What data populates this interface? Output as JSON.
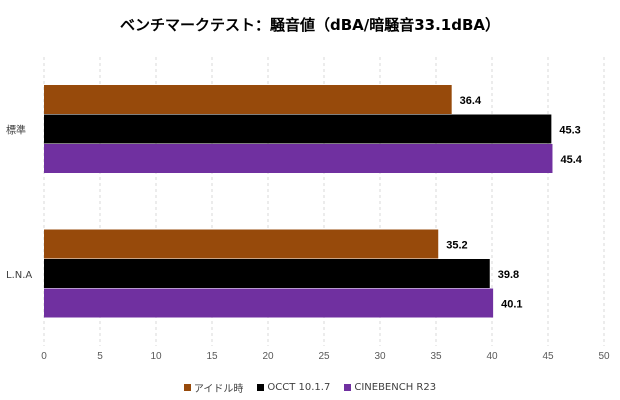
{
  "chart_data": {
    "type": "bar",
    "orientation": "horizontal",
    "title": "ベンチマークテスト：騒音値（dBA/暗騒音33.1dBA）",
    "categories": [
      "標準",
      "L.N.A"
    ],
    "series": [
      {
        "name": "アイドル時",
        "color": "#974A0B",
        "values": [
          36.4,
          35.2
        ]
      },
      {
        "name": "OCCT 10.1.7",
        "color": "#000000",
        "values": [
          45.3,
          39.8
        ]
      },
      {
        "name": "CINEBENCH R23",
        "color": "#7030A0",
        "values": [
          45.4,
          40.1
        ]
      }
    ],
    "xlim": [
      0,
      50
    ],
    "xticks": [
      0,
      5,
      10,
      15,
      20,
      25,
      30,
      35,
      40,
      45,
      50
    ],
    "grid": true,
    "legend": "bottom"
  }
}
